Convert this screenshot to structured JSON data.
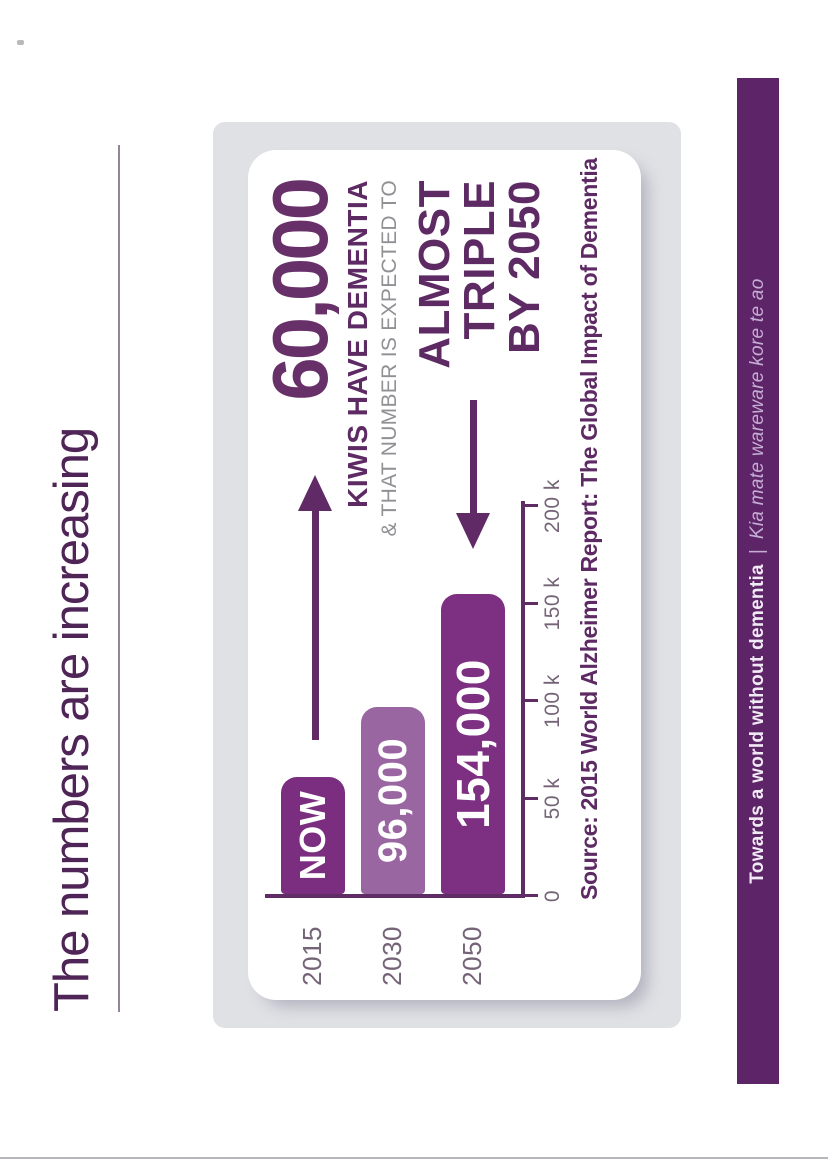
{
  "slide": {
    "title": "The numbers are increasing",
    "hero": {
      "big_number": "60,000",
      "subtitle": "KIWIS HAVE DEMENTIA",
      "connector": "& THAT NUMBER IS EXPECTED TO",
      "emphasis_line1": "ALMOST",
      "emphasis_line2": "TRIPLE",
      "emphasis_line3": "BY 2050"
    },
    "source": "Source: 2015 World Alzheimer Report: The Global Impact of Dementia",
    "footer": {
      "text": "Towards a world without dementia",
      "separator": "|",
      "maori_text": "Kia mate wareware kore te ao"
    },
    "colors": {
      "accent_dark_purple": "#5d2a64",
      "bar_2015": "#7b2e7f",
      "bar_2030": "#9966a2",
      "bar_2050": "#7d2f82",
      "footer_background": "#5e2468",
      "panel_gray": "#e0e1e5",
      "muted_gray_text": "#909095",
      "axis_label_gray": "#756477"
    }
  },
  "chart_data": {
    "type": "bar",
    "orientation": "horizontal",
    "title": "",
    "categories": [
      "2015",
      "2030",
      "2050"
    ],
    "values": [
      60000,
      96000,
      154000
    ],
    "bar_labels": [
      "NOW",
      "96,000",
      "154,000"
    ],
    "bar_colors": [
      "#7b2e7f",
      "#9966a2",
      "#7d2f82"
    ],
    "value_axis_ticks": [
      0,
      50000,
      100000,
      150000,
      200000
    ],
    "value_axis_tick_labels": [
      "0",
      "50 k",
      "100 k",
      "150 k",
      "200 k"
    ],
    "value_axis_max": 200000,
    "xlabel": "",
    "ylabel": "",
    "grid": false,
    "legend": false
  }
}
